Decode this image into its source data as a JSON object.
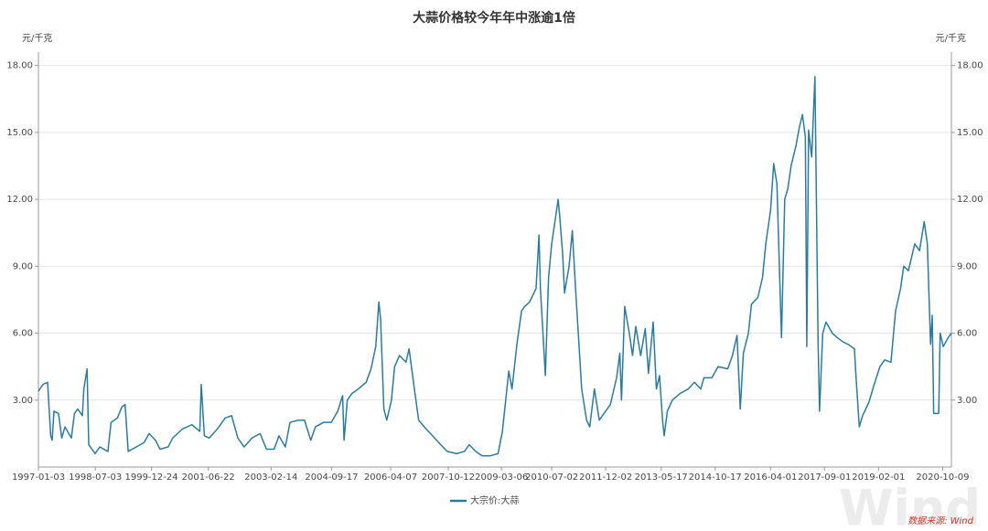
{
  "chart_data": {
    "type": "line",
    "title": "大蒜价格较今年年中涨逾1倍",
    "y_label": "元/千克",
    "y2_label": "元/千克",
    "source": "数据来源: Wind",
    "watermark": "Wind",
    "xlim": [
      "1997-01-03",
      "2021-01-01"
    ],
    "xticks": [
      "1997-01-03",
      "1998-07-03",
      "1999-12-24",
      "2001-06-22",
      "2003-02-14",
      "2004-09-17",
      "2006-04-07",
      "2007-10-12",
      "2009-03-06",
      "2010-07-02",
      "2011-12-02",
      "2013-05-17",
      "2014-10-17",
      "2016-04-01",
      "2017-09-01",
      "2019-02-01",
      "2020-10-09"
    ],
    "ylim": [
      0,
      18.6
    ],
    "yticks": [
      {
        "value": 3,
        "label": "3.00"
      },
      {
        "value": 6,
        "label": "6.00"
      },
      {
        "value": 9,
        "label": "9.00"
      },
      {
        "value": 12,
        "label": "12.00"
      },
      {
        "value": 15,
        "label": "15.00"
      },
      {
        "value": 18,
        "label": "18.00"
      }
    ],
    "y2lim": [
      0,
      18.6
    ],
    "y2ticks": [
      {
        "value": 3,
        "label": "3.00"
      },
      {
        "value": 6,
        "label": "6.00"
      },
      {
        "value": 9,
        "label": "9.00"
      },
      {
        "value": 12,
        "label": "12.00"
      },
      {
        "value": 15,
        "label": "15.00"
      },
      {
        "value": 18,
        "label": "18.00"
      }
    ],
    "grid": true,
    "x": [
      "1997-01-03",
      "1997-02-15",
      "1997-04-01",
      "1997-05-01",
      "1997-05-15",
      "1997-06-01",
      "1997-07-15",
      "1997-08-15",
      "1997-09-15",
      "1997-11-15",
      "1997-12-15",
      "1998-01-15",
      "1998-03-01",
      "1998-03-15",
      "1998-04-15",
      "1998-05-01",
      "1998-07-01",
      "1998-08-15",
      "1998-11-01",
      "1998-12-01",
      "1999-02-01",
      "1999-03-15",
      "1999-04-15",
      "1999-05-15",
      "1999-08-01",
      "1999-10-15",
      "1999-12-01",
      "2000-02-01",
      "2000-03-15",
      "2000-06-01",
      "2000-07-15",
      "2000-10-15",
      "2001-01-15",
      "2001-04-01",
      "2001-04-15",
      "2001-05-15",
      "2001-07-01",
      "2001-09-15",
      "2001-12-01",
      "2002-02-01",
      "2002-04-01",
      "2002-06-01",
      "2002-08-15",
      "2002-11-01",
      "2003-01-01",
      "2003-03-15",
      "2003-05-01",
      "2003-07-01",
      "2003-08-15",
      "2003-11-01",
      "2004-01-01",
      "2004-03-01",
      "2004-04-15",
      "2004-07-01",
      "2004-09-15",
      "2004-11-15",
      "2005-01-01",
      "2005-01-15",
      "2005-02-15",
      "2005-04-01",
      "2005-06-01",
      "2005-08-15",
      "2005-10-01",
      "2005-11-15",
      "2005-12-15",
      "2006-01-01",
      "2006-02-01",
      "2006-03-01",
      "2006-04-15",
      "2006-05-15",
      "2006-07-01",
      "2006-09-01",
      "2006-10-01",
      "2006-11-15",
      "2007-01-01",
      "2007-03-15",
      "2007-05-15",
      "2007-08-01",
      "2007-10-01",
      "2008-01-01",
      "2008-03-15",
      "2008-05-01",
      "2008-07-01",
      "2008-09-01",
      "2008-11-15",
      "2009-02-01",
      "2009-03-15",
      "2009-05-15",
      "2009-06-15",
      "2009-08-01",
      "2009-09-15",
      "2009-10-15",
      "2009-12-01",
      "2010-02-01",
      "2010-03-01",
      "2010-03-15",
      "2010-05-01",
      "2010-06-01",
      "2010-07-01",
      "2010-09-01",
      "2010-09-15",
      "2010-10-15",
      "2010-11-01",
      "2010-12-15",
      "2011-01-15",
      "2011-02-15",
      "2011-04-15",
      "2011-06-01",
      "2011-07-01",
      "2011-08-15",
      "2011-10-01",
      "2011-12-01",
      "2012-01-15",
      "2012-03-15",
      "2012-04-15",
      "2012-05-01",
      "2012-06-01",
      "2012-07-15",
      "2012-08-15",
      "2012-09-15",
      "2012-11-01",
      "2012-12-15",
      "2013-01-15",
      "2013-03-01",
      "2013-04-01",
      "2013-05-01",
      "2013-06-01",
      "2013-06-15",
      "2013-07-15",
      "2013-09-01",
      "2013-11-15",
      "2014-02-01",
      "2014-04-01",
      "2014-06-01",
      "2014-07-01",
      "2014-09-15",
      "2014-11-15",
      "2015-02-15",
      "2015-04-01",
      "2015-05-15",
      "2015-06-15",
      "2015-07-15",
      "2015-09-01",
      "2015-10-01",
      "2015-12-01",
      "2016-01-15",
      "2016-02-15",
      "2016-04-01",
      "2016-05-01",
      "2016-06-01",
      "2016-07-15",
      "2016-08-15",
      "2016-09-15",
      "2016-10-15",
      "2016-12-01",
      "2017-01-01",
      "2017-02-01",
      "2017-03-01",
      "2017-03-15",
      "2017-04-01",
      "2017-05-01",
      "2017-06-01",
      "2017-07-01",
      "2017-07-15",
      "2017-08-15",
      "2017-09-15",
      "2017-11-15",
      "2018-01-01",
      "2018-03-01",
      "2018-04-15",
      "2018-06-15",
      "2018-07-01",
      "2018-08-01",
      "2018-09-01",
      "2018-11-01",
      "2018-12-15",
      "2019-02-15",
      "2019-04-01",
      "2019-06-01",
      "2019-07-15",
      "2019-09-01",
      "2019-10-01",
      "2019-11-15",
      "2020-01-15",
      "2020-03-01",
      "2020-04-15",
      "2020-05-15",
      "2020-06-15",
      "2020-07-01",
      "2020-07-15",
      "2020-09-01",
      "2020-09-15",
      "2020-10-15",
      "2020-12-01",
      "2021-01-01"
    ],
    "series": [
      {
        "name": "大宗价:大蒜",
        "color": "#2b7b9c",
        "values": [
          3.4,
          3.7,
          3.8,
          1.4,
          1.2,
          2.5,
          2.4,
          1.3,
          1.8,
          1.3,
          2.4,
          2.6,
          2.3,
          3.5,
          4.4,
          1.0,
          0.6,
          0.9,
          0.7,
          2.0,
          2.2,
          2.7,
          2.8,
          0.7,
          0.9,
          1.1,
          1.5,
          1.2,
          0.8,
          0.9,
          1.3,
          1.7,
          1.9,
          1.6,
          3.7,
          1.4,
          1.3,
          1.7,
          2.2,
          2.3,
          1.3,
          0.9,
          1.3,
          1.5,
          0.8,
          0.8,
          1.4,
          0.9,
          2.0,
          2.1,
          2.1,
          1.2,
          1.8,
          2.0,
          2.0,
          2.5,
          3.2,
          1.2,
          3.0,
          3.3,
          3.5,
          3.8,
          4.4,
          5.4,
          7.4,
          6.6,
          2.6,
          2.1,
          3.0,
          4.5,
          5.0,
          4.7,
          5.3,
          3.7,
          2.1,
          1.7,
          1.4,
          1.0,
          0.7,
          0.6,
          0.7,
          1.0,
          0.7,
          0.5,
          0.5,
          0.6,
          1.6,
          4.3,
          3.5,
          5.5,
          7.0,
          7.2,
          7.4,
          8.0,
          10.4,
          8.0,
          4.1,
          8.5,
          10.0,
          12.0,
          11.3,
          9.5,
          7.8,
          9.0,
          10.6,
          8.0,
          3.5,
          2.1,
          1.8,
          3.5,
          2.1,
          2.5,
          2.8,
          4.0,
          5.1,
          3.0,
          7.2,
          6.0,
          5.0,
          6.3,
          5.0,
          6.2,
          4.2,
          6.5,
          3.5,
          4.1,
          2.0,
          1.4,
          2.5,
          3.0,
          3.3,
          3.5,
          3.8,
          3.5,
          4.0,
          4.0,
          4.5,
          4.4,
          5.0,
          5.9,
          2.6,
          5.1,
          6.0,
          7.3,
          7.6,
          8.5,
          10.0,
          11.5,
          13.6,
          12.7,
          5.8,
          12.0,
          12.5,
          13.5,
          14.4,
          15.2,
          15.8,
          14.8,
          5.4,
          15.1,
          13.9,
          17.5,
          5.7,
          2.5,
          6.0,
          6.5,
          6.0,
          5.8,
          5.6,
          5.5,
          5.3,
          4.0,
          1.8,
          2.3,
          2.9,
          3.6,
          4.5,
          4.8,
          4.7,
          7.0,
          8.0,
          9.0,
          8.8,
          10.0,
          9.7,
          11.0,
          10.0,
          5.5,
          6.8,
          2.4,
          2.4,
          6.0,
          5.4,
          5.8,
          6.0
        ]
      }
    ]
  }
}
